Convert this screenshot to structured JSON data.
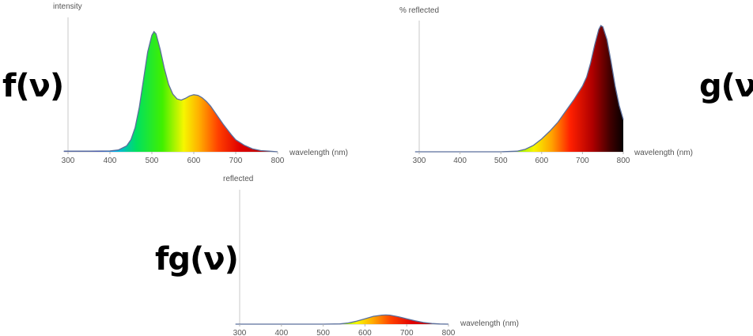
{
  "palette": {
    "axis": "#c8c8c8",
    "text": "#555555",
    "curve_outline": "#5a6f9c"
  },
  "chart_data": [
    {
      "type": "area",
      "id": "f",
      "function_label": "f(ν)",
      "xlabel": "wavelength (nm)",
      "ylabel": "intensity",
      "xlim": [
        290,
        800
      ],
      "ylim": [
        0,
        1
      ],
      "xticks": [
        "300",
        "400",
        "500",
        "600",
        "700",
        "800"
      ],
      "fill": "spectral",
      "x": [
        290,
        300,
        350,
        400,
        420,
        440,
        450,
        460,
        470,
        480,
        490,
        500,
        505,
        510,
        520,
        530,
        540,
        550,
        560,
        570,
        580,
        590,
        600,
        610,
        620,
        630,
        640,
        650,
        660,
        670,
        680,
        690,
        700,
        720,
        740,
        760,
        780,
        800
      ],
      "y": [
        0.005,
        0.005,
        0.005,
        0.007,
        0.015,
        0.05,
        0.1,
        0.2,
        0.37,
        0.6,
        0.83,
        0.97,
        1.0,
        0.98,
        0.85,
        0.69,
        0.56,
        0.48,
        0.44,
        0.43,
        0.445,
        0.465,
        0.475,
        0.47,
        0.45,
        0.42,
        0.38,
        0.33,
        0.28,
        0.23,
        0.185,
        0.14,
        0.1,
        0.055,
        0.025,
        0.01,
        0.005,
        0.0
      ]
    },
    {
      "type": "area",
      "id": "g",
      "function_label": "g(ν)",
      "xlabel": "wavelength (nm)",
      "ylabel": "% reflected",
      "xlim": [
        290,
        800
      ],
      "ylim": [
        0,
        1
      ],
      "xticks": [
        "300",
        "400",
        "500",
        "600",
        "700",
        "800"
      ],
      "fill": "spectral-dark",
      "x": [
        290,
        300,
        400,
        500,
        540,
        560,
        580,
        600,
        620,
        640,
        660,
        680,
        700,
        710,
        720,
        730,
        740,
        745,
        750,
        760,
        770,
        780,
        790,
        800
      ],
      "y": [
        0.0,
        0.0,
        0.0,
        0.0,
        0.005,
        0.02,
        0.05,
        0.1,
        0.16,
        0.23,
        0.32,
        0.41,
        0.51,
        0.58,
        0.69,
        0.83,
        0.95,
        0.98,
        0.97,
        0.87,
        0.7,
        0.51,
        0.36,
        0.25
      ]
    },
    {
      "type": "area",
      "id": "fg",
      "function_label": "fg(ν)",
      "xlabel": "wavelength (nm)",
      "ylabel": "reflected",
      "xlim": [
        290,
        800
      ],
      "ylim": [
        0,
        1
      ],
      "xticks": [
        "300",
        "400",
        "500",
        "600",
        "700",
        "800"
      ],
      "fill": "spectral",
      "x": [
        290,
        300,
        400,
        500,
        540,
        560,
        580,
        600,
        620,
        640,
        650,
        660,
        680,
        700,
        720,
        740,
        760,
        780,
        800
      ],
      "y": [
        0.0,
        0.0,
        0.0,
        0.0,
        0.002,
        0.01,
        0.025,
        0.045,
        0.065,
        0.075,
        0.076,
        0.075,
        0.062,
        0.045,
        0.028,
        0.014,
        0.005,
        0.001,
        0.0
      ]
    }
  ]
}
